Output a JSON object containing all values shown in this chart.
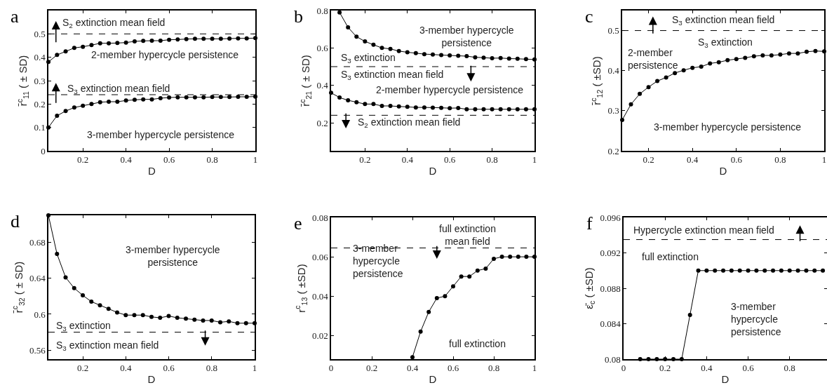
{
  "chart_data": [
    {
      "type": "line",
      "title": "a",
      "xlabel": "D",
      "ylabel": "r̄$^{c}$$_{11}$ ( ± SD)",
      "xlim": [
        0.04,
        1
      ],
      "xticks": [
        0.2,
        0.4,
        0.6,
        0.8,
        1
      ],
      "ylim": [
        0,
        0.6
      ],
      "yticks": [
        0,
        0.1,
        0.2,
        0.3,
        0.4,
        0.5
      ],
      "marker": "circle",
      "line_style": "solid",
      "series": [
        {
          "color": "#000000",
          "x": [
            0.04,
            0.08,
            0.12,
            0.16,
            0.2,
            0.24,
            0.28,
            0.32,
            0.36,
            0.4,
            0.44,
            0.48,
            0.52,
            0.56,
            0.6,
            0.64,
            0.68,
            0.72,
            0.76,
            0.8,
            0.84,
            0.88,
            0.92,
            0.96,
            1
          ],
          "values": [
            0.38,
            0.41,
            0.425,
            0.44,
            0.445,
            0.452,
            0.46,
            0.46,
            0.461,
            0.463,
            0.468,
            0.47,
            0.471,
            0.471,
            0.475,
            0.476,
            0.478,
            0.479,
            0.479,
            0.479,
            0.479,
            0.48,
            0.481,
            0.481,
            0.482
          ]
        },
        {
          "color": "#000000",
          "x": [
            0.04,
            0.08,
            0.12,
            0.16,
            0.2,
            0.24,
            0.28,
            0.32,
            0.36,
            0.4,
            0.44,
            0.48,
            0.52,
            0.56,
            0.6,
            0.64,
            0.68,
            0.72,
            0.76,
            0.8,
            0.84,
            0.88,
            0.92,
            0.96,
            1
          ],
          "values": [
            0.1,
            0.15,
            0.17,
            0.185,
            0.193,
            0.2,
            0.208,
            0.21,
            0.21,
            0.215,
            0.218,
            0.22,
            0.22,
            0.225,
            0.228,
            0.229,
            0.229,
            0.229,
            0.229,
            0.23,
            0.23,
            0.23,
            0.231,
            0.231,
            0.232
          ]
        }
      ],
      "ref_lines": [
        {
          "axis": "y",
          "value": 0.5,
          "color": "#000000",
          "line_style": "dashed"
        },
        {
          "axis": "y",
          "value": 0.24,
          "color": "#000000",
          "line_style": "dashed"
        }
      ],
      "annotations": [
        "S$_{2}$ extinction mean field",
        "2-member hypercycle persistence",
        "S$_{3}$ extinction mean field",
        "3-member hypercycle persistence"
      ]
    },
    {
      "type": "line",
      "title": "b",
      "xlabel": "D",
      "ylabel": "r̄$^{c}$$_{21}$ ( ± SD)",
      "xlim": [
        0.04,
        1
      ],
      "xticks": [
        0.2,
        0.4,
        0.6,
        0.8,
        1
      ],
      "ylim": [
        0.05,
        0.8
      ],
      "yticks": [
        0.2,
        0.4,
        0.6,
        0.8
      ],
      "marker": "circle",
      "line_style": "solid",
      "series": [
        {
          "color": "#000000",
          "x": [
            0.08,
            0.12,
            0.16,
            0.2,
            0.24,
            0.28,
            0.32,
            0.36,
            0.4,
            0.44,
            0.48,
            0.52,
            0.56,
            0.6,
            0.64,
            0.68,
            0.72,
            0.76,
            0.8,
            0.84,
            0.88,
            0.92,
            0.96,
            1
          ],
          "values": [
            0.79,
            0.71,
            0.66,
            0.635,
            0.617,
            0.6,
            0.595,
            0.583,
            0.577,
            0.572,
            0.567,
            0.565,
            0.562,
            0.56,
            0.558,
            0.556,
            0.55,
            0.548,
            0.545,
            0.546,
            0.543,
            0.542,
            0.54,
            0.538
          ]
        },
        {
          "color": "#000000",
          "x": [
            0.04,
            0.08,
            0.12,
            0.16,
            0.2,
            0.24,
            0.28,
            0.32,
            0.36,
            0.4,
            0.44,
            0.48,
            0.52,
            0.56,
            0.6,
            0.64,
            0.68,
            0.72,
            0.76,
            0.8,
            0.84,
            0.88,
            0.92,
            0.96,
            1
          ],
          "values": [
            0.36,
            0.335,
            0.32,
            0.31,
            0.3,
            0.3,
            0.29,
            0.29,
            0.287,
            0.285,
            0.282,
            0.282,
            0.281,
            0.28,
            0.278,
            0.279,
            0.272,
            0.272,
            0.272,
            0.272,
            0.272,
            0.272,
            0.272,
            0.272,
            0.272
          ]
        }
      ],
      "ref_lines": [
        {
          "axis": "y",
          "value": 0.5,
          "color": "#000000",
          "line_style": "dashed"
        },
        {
          "axis": "y",
          "value": 0.24,
          "color": "#000000",
          "line_style": "dashed"
        }
      ],
      "annotations": [
        "3-member hypercycle\npersistence",
        "S$_{3}$ extinction",
        "S$_{3}$ extinction mean field",
        "2-member hypercycle persistence",
        "S$_{2}$ extinction mean field"
      ]
    },
    {
      "type": "line",
      "title": "c",
      "xlabel": "D",
      "ylabel": "r̄$^{c}$$_{12}$ ( ±SD)",
      "xlim": [
        0.08,
        1
      ],
      "xticks": [
        0.2,
        0.4,
        0.6,
        0.8,
        1
      ],
      "ylim": [
        0.2,
        0.55
      ],
      "yticks": [
        0.2,
        0.3,
        0.4,
        0.5
      ],
      "marker": "circle",
      "line_style": "solid",
      "series": [
        {
          "color": "#000000",
          "x": [
            0.08,
            0.12,
            0.16,
            0.2,
            0.24,
            0.28,
            0.32,
            0.36,
            0.4,
            0.44,
            0.48,
            0.52,
            0.56,
            0.6,
            0.64,
            0.68,
            0.72,
            0.76,
            0.8,
            0.84,
            0.88,
            0.92,
            0.96,
            1
          ],
          "values": [
            0.277,
            0.316,
            0.342,
            0.359,
            0.374,
            0.383,
            0.394,
            0.401,
            0.407,
            0.41,
            0.418,
            0.421,
            0.426,
            0.429,
            0.432,
            0.436,
            0.438,
            0.438,
            0.44,
            0.443,
            0.443,
            0.447,
            0.449,
            0.448
          ]
        }
      ],
      "ref_lines": [
        {
          "axis": "y",
          "value": 0.5,
          "color": "#000000",
          "line_style": "dashed"
        }
      ],
      "annotations": [
        "S$_{3}$ extinction mean field",
        "2-member\npersistence",
        "S$_{3}$ extinction",
        "3-member hypercycle persistence"
      ]
    },
    {
      "type": "line",
      "title": "d",
      "xlabel": "D",
      "ylabel": "r̄$^{c}$$_{32}$ ( ± SD)",
      "xlim": [
        0.04,
        1
      ],
      "xticks": [
        0.2,
        0.4,
        0.6,
        0.8,
        1
      ],
      "ylim": [
        0.55,
        0.71
      ],
      "yticks": [
        0.56,
        0.6,
        0.64,
        0.68
      ],
      "marker": "circle",
      "line_style": "solid",
      "series": [
        {
          "color": "#000000",
          "x": [
            0.04,
            0.08,
            0.12,
            0.16,
            0.2,
            0.24,
            0.28,
            0.32,
            0.36,
            0.4,
            0.44,
            0.48,
            0.52,
            0.56,
            0.6,
            0.64,
            0.68,
            0.72,
            0.76,
            0.8,
            0.84,
            0.88,
            0.92,
            0.96,
            1
          ],
          "values": [
            0.71,
            0.667,
            0.641,
            0.629,
            0.621,
            0.614,
            0.61,
            0.606,
            0.602,
            0.599,
            0.599,
            0.599,
            0.597,
            0.596,
            0.598,
            0.596,
            0.595,
            0.594,
            0.593,
            0.593,
            0.591,
            0.592,
            0.59,
            0.59,
            0.59
          ]
        }
      ],
      "ref_lines": [
        {
          "axis": "y",
          "value": 0.58,
          "color": "#000000",
          "line_style": "dashed"
        }
      ],
      "annotations": [
        "3-member hypercycle\npersistence",
        "S$_{3}$ extinction",
        "S$_{3}$ extinction mean field"
      ]
    },
    {
      "type": "line",
      "title": "e",
      "xlabel": "D",
      "ylabel": "r$^{c}$$_{13}$ ( ±SD)",
      "xlim": [
        0,
        1
      ],
      "xticks": [
        0,
        0.2,
        0.4,
        0.6,
        0.8,
        1
      ],
      "ylim": [
        0.008,
        0.08
      ],
      "yticks": [
        0.02,
        0.04,
        0.06,
        0.08
      ],
      "marker": "circle",
      "line_style": "solid",
      "series": [
        {
          "color": "#000000",
          "x": [
            0.4,
            0.44,
            0.48,
            0.52,
            0.56,
            0.6,
            0.64,
            0.68,
            0.72,
            0.76,
            0.8,
            0.84,
            0.88,
            0.92,
            0.96,
            1
          ],
          "values": [
            0.009,
            0.022,
            0.032,
            0.039,
            0.04,
            0.045,
            0.05,
            0.05,
            0.053,
            0.054,
            0.059,
            0.06,
            0.06,
            0.06,
            0.06,
            0.06
          ]
        }
      ],
      "ref_lines": [
        {
          "axis": "y",
          "value": 0.0645,
          "color": "#000000",
          "line_style": "dashed"
        }
      ],
      "annotations": [
        "full extinction\nmean field",
        "3-member\nhypercycle\npersistence",
        "full extinction"
      ]
    },
    {
      "type": "line",
      "title": "f",
      "xlabel": "D",
      "ylabel": "ε̄$_{c}$ ( ±SD)",
      "xlim": [
        0,
        0.98
      ],
      "xticks": [
        0,
        0.2,
        0.4,
        0.6,
        0.8
      ],
      "ylim": [
        0.08,
        0.096
      ],
      "yticks": [
        0.08,
        0.084,
        0.088,
        0.092,
        0.096
      ],
      "marker": "circle",
      "line_style": "solid",
      "series": [
        {
          "color": "#000000",
          "x": [
            0.08,
            0.12,
            0.16,
            0.2,
            0.24,
            0.28,
            0.32,
            0.36,
            0.4,
            0.44,
            0.48,
            0.52,
            0.56,
            0.6,
            0.64,
            0.68,
            0.72,
            0.76,
            0.8,
            0.84,
            0.88,
            0.92,
            0.96
          ],
          "values": [
            0.08,
            0.08,
            0.08,
            0.08,
            0.08,
            0.08,
            0.085,
            0.09,
            0.09,
            0.09,
            0.09,
            0.09,
            0.09,
            0.09,
            0.09,
            0.09,
            0.09,
            0.09,
            0.09,
            0.09,
            0.09,
            0.09,
            0.09
          ]
        }
      ],
      "ref_lines": [
        {
          "axis": "y",
          "value": 0.0935,
          "color": "#000000",
          "line_style": "dashed"
        }
      ],
      "annotations": [
        "Hypercycle extinction mean field",
        "full extinction",
        "3-member\nhypercycle\npersistence"
      ]
    }
  ]
}
